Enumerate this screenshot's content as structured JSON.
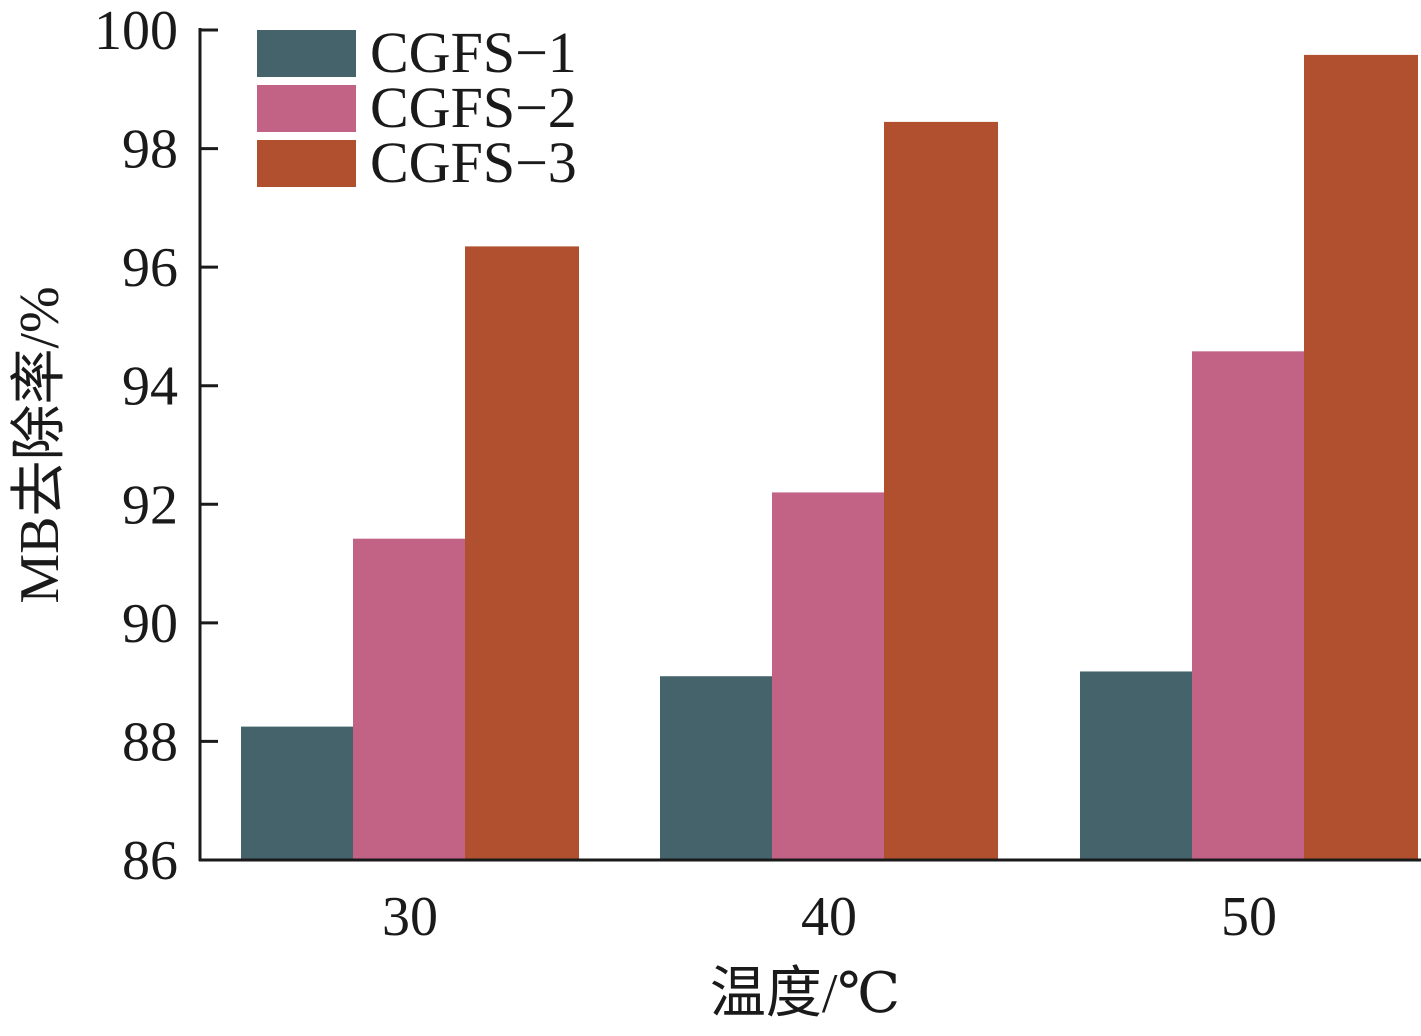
{
  "chart_data": {
    "type": "bar",
    "xlabel": "温度/℃",
    "ylabel": "MB去除率/%",
    "ylim": [
      86,
      100
    ],
    "yticks": [
      86,
      88,
      90,
      92,
      94,
      96,
      98,
      100
    ],
    "categories": [
      "30",
      "40",
      "50"
    ],
    "series": [
      {
        "name": "CGFS−1",
        "color": "#44636a",
        "values": [
          88.25,
          89.1,
          89.18
        ]
      },
      {
        "name": "CGFS−2",
        "color": "#c26386",
        "values": [
          91.42,
          92.2,
          94.58
        ]
      },
      {
        "name": "CGFS−3",
        "color": "#b0502f",
        "values": [
          96.35,
          98.45,
          99.58
        ]
      }
    ],
    "legend": "top-left",
    "grid": false
  }
}
